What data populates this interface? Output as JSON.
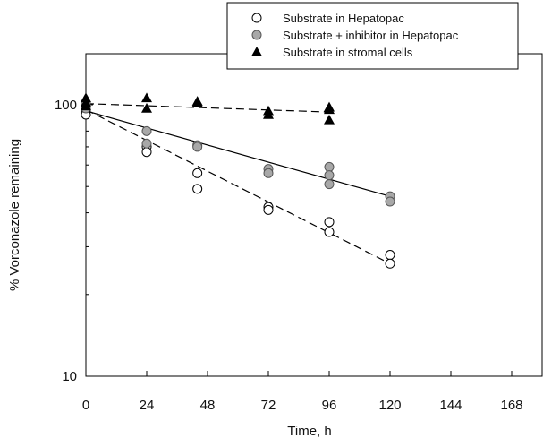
{
  "chart_data": {
    "type": "scatter",
    "title": "",
    "xlabel": "Time, h",
    "ylabel": "% Vorconazole remaining",
    "xlim": [
      0,
      180
    ],
    "ylim": [
      10,
      150
    ],
    "yscale": "log",
    "grid": false,
    "legend_position": "top-right",
    "xticks": [
      0,
      24,
      48,
      72,
      96,
      120,
      144,
      168
    ],
    "xtick_labels": [
      "0",
      "24",
      "48",
      "72",
      "96",
      "120",
      "144",
      "168"
    ],
    "yticks": [
      10,
      100
    ],
    "ytick_labels": [
      "10",
      "100"
    ],
    "series": [
      {
        "name": "Substrate in Hepatopac",
        "marker": "circle-open",
        "color": "#000000",
        "points": [
          [
            0,
            96
          ],
          [
            0,
            92
          ],
          [
            24,
            70
          ],
          [
            24,
            67
          ],
          [
            44,
            56
          ],
          [
            44,
            49
          ],
          [
            72,
            42
          ],
          [
            72,
            41
          ],
          [
            96,
            37
          ],
          [
            96,
            34
          ],
          [
            120,
            28
          ],
          [
            120,
            26
          ]
        ],
        "fit": {
          "style": "dashed",
          "x": [
            0,
            120
          ],
          "y": [
            96,
            26
          ]
        }
      },
      {
        "name": "Substrate + inhibitor in Hepatopac",
        "marker": "circle-gray",
        "color": "#a8a8a8",
        "points": [
          [
            0,
            101
          ],
          [
            0,
            97
          ],
          [
            24,
            80
          ],
          [
            24,
            72
          ],
          [
            44,
            71
          ],
          [
            44,
            70
          ],
          [
            72,
            58
          ],
          [
            72,
            56
          ],
          [
            96,
            59
          ],
          [
            96,
            55
          ],
          [
            96,
            51
          ],
          [
            120,
            46
          ],
          [
            120,
            44
          ]
        ],
        "fit": {
          "style": "solid",
          "x": [
            0,
            120
          ],
          "y": [
            95,
            46
          ]
        }
      },
      {
        "name": "Substrate in stromal cells",
        "marker": "triangle-filled",
        "color": "#000000",
        "points": [
          [
            0,
            106
          ],
          [
            0,
            102
          ],
          [
            0,
            99
          ],
          [
            24,
            106
          ],
          [
            24,
            97
          ],
          [
            44,
            103
          ],
          [
            44,
            102
          ],
          [
            72,
            95
          ],
          [
            72,
            92
          ],
          [
            96,
            98
          ],
          [
            96,
            96
          ],
          [
            96,
            88
          ]
        ],
        "fit": {
          "style": "dashed",
          "x": [
            0,
            96
          ],
          "y": [
            101,
            94
          ]
        }
      }
    ]
  }
}
